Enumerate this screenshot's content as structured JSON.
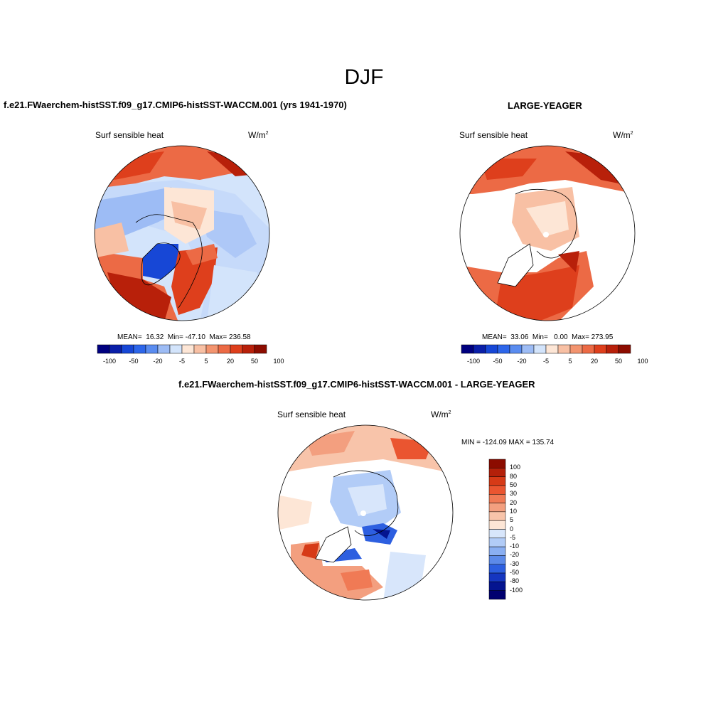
{
  "page": {
    "title": "DJF"
  },
  "panels": {
    "case": {
      "title": "f.e21.FWaerchem-histSST.f09_g17.CMIP6-histSST-WACCM.001 (yrs 1941-1970)",
      "field": "Surf sensible heat",
      "units": "W/m",
      "units_sup": "2",
      "stats": "MEAN=  16.32  Min= -47.10  Max= 236.58",
      "colorbar_ticks": [
        "-100",
        "-50",
        "-20",
        "-5",
        "5",
        "20",
        "50",
        "100"
      ]
    },
    "reference": {
      "title": "LARGE-YEAGER",
      "field": "Surf sensible heat",
      "units": "W/m",
      "units_sup": "2",
      "stats": "MEAN=  33.06  Min=   0.00  Max= 273.95",
      "colorbar_ticks": [
        "-100",
        "-50",
        "-20",
        "-5",
        "5",
        "20",
        "50",
        "100"
      ]
    },
    "difference": {
      "title": "f.e21.FWaerchem-histSST.f09_g17.CMIP6-histSST-WACCM.001 - LARGE-YEAGER",
      "field": "Surf sensible heat",
      "units": "W/m",
      "units_sup": "2",
      "stats": "MIN = -124.09 MAX = 135.74",
      "colorbar_levels": [
        "100",
        "80",
        "50",
        "30",
        "20",
        "10",
        "5",
        "0",
        "-5",
        "-10",
        "-20",
        "-30",
        "-50",
        "-80",
        "-100"
      ]
    }
  },
  "colors": {
    "abs_scale": [
      "#00007f",
      "#0a1fa8",
      "#1747d6",
      "#2d66ea",
      "#5a8cf0",
      "#9dbcf5",
      "#d3e4fb",
      "#fde6d6",
      "#f8c0a4",
      "#f3946f",
      "#ec6a45",
      "#de3f1c",
      "#b8200a",
      "#8c0c00"
    ],
    "diff_scale": [
      "#8c0c00",
      "#b4200a",
      "#d63a17",
      "#ea5530",
      "#f07a55",
      "#f39f7f",
      "#f8c4aa",
      "#fde6d6",
      "#d8e6fb",
      "#b2ccf7",
      "#8aaff2",
      "#5c8ae9",
      "#2d5fe0",
      "#1536c0",
      "#041490",
      "#000070"
    ]
  }
}
